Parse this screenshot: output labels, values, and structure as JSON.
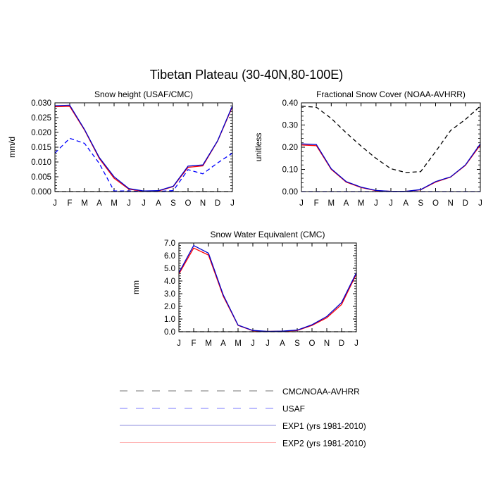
{
  "title": "Tibetan Plateau (30-40N,80-100E)",
  "months": [
    "J",
    "F",
    "M",
    "A",
    "M",
    "J",
    "J",
    "A",
    "S",
    "O",
    "N",
    "D",
    "J"
  ],
  "legend": [
    {
      "label": "CMC/NOAA-AVHRR",
      "color": "#000000",
      "dash": true
    },
    {
      "label": "USAF",
      "color": "#0000ff",
      "dash": true
    },
    {
      "label": "EXP1 (yrs 1981-2010)",
      "color": "#0000cc",
      "dash": false
    },
    {
      "label": "EXP2 (yrs 1981-2010)",
      "color": "#ff0000",
      "dash": false
    }
  ],
  "chart_data": [
    {
      "type": "line",
      "title": "Snow height (USAF/CMC)",
      "ylabel": "mm/d",
      "ylim": [
        0,
        0.03
      ],
      "yticks": [
        "0.000",
        "0.005",
        "0.010",
        "0.015",
        "0.020",
        "0.025",
        "0.030"
      ],
      "series": [
        {
          "name": "CMC/NOAA-AVHRR",
          "color": "#000000",
          "dash": true,
          "values": [
            0,
            0,
            0,
            0,
            0,
            0,
            0,
            0,
            0,
            0,
            0,
            0,
            0
          ]
        },
        {
          "name": "USAF",
          "color": "#0000ff",
          "dash": true,
          "values": [
            0.013,
            0.018,
            0.0163,
            0.0095,
            0.0002,
            0.0002,
            0.0001,
            0.0001,
            0.0003,
            0.0074,
            0.006,
            0.0097,
            0.013
          ]
        },
        {
          "name": "EXP2 (yrs 1981-2010)",
          "color": "#ff0000",
          "dash": false,
          "values": [
            0.0287,
            0.0288,
            0.0208,
            0.0112,
            0.0045,
            0.0008,
            0.0001,
            0.0002,
            0.0017,
            0.0082,
            0.0087,
            0.0171,
            0.0287
          ]
        },
        {
          "name": "EXP1 (yrs 1981-2010)",
          "color": "#0000cc",
          "dash": false,
          "values": [
            0.029,
            0.0292,
            0.021,
            0.0115,
            0.005,
            0.001,
            0.0002,
            0.0003,
            0.0018,
            0.0086,
            0.009,
            0.0172,
            0.029
          ]
        }
      ]
    },
    {
      "type": "line",
      "title": "Fractional Snow Cover (NOAA-AVHRR)",
      "ylabel": "unitless",
      "ylim": [
        0,
        0.4
      ],
      "yticks": [
        "0.00",
        "0.10",
        "0.20",
        "0.30",
        "0.40"
      ],
      "series": [
        {
          "name": "CMC/NOAA-AVHRR",
          "color": "#000000",
          "dash": true,
          "values": [
            0.385,
            0.38,
            0.33,
            0.265,
            0.205,
            0.15,
            0.103,
            0.086,
            0.09,
            0.18,
            0.275,
            0.325,
            0.385
          ]
        },
        {
          "name": "USAF",
          "color": "#0000ff",
          "dash": true,
          "values": [
            0,
            0,
            0,
            0,
            0,
            0,
            0,
            0,
            0,
            0,
            0,
            0,
            0
          ]
        },
        {
          "name": "EXP2 (yrs 1981-2010)",
          "color": "#ff0000",
          "dash": false,
          "values": [
            0.21,
            0.207,
            0.1,
            0.043,
            0.018,
            0.004,
            0.001,
            0.001,
            0.008,
            0.043,
            0.065,
            0.118,
            0.21
          ]
        },
        {
          "name": "EXP1 (yrs 1981-2010)",
          "color": "#0000cc",
          "dash": false,
          "values": [
            0.215,
            0.212,
            0.103,
            0.045,
            0.02,
            0.005,
            0.001,
            0.001,
            0.009,
            0.045,
            0.066,
            0.12,
            0.215
          ]
        }
      ]
    },
    {
      "type": "line",
      "title": "Snow Water Equivalent (CMC)",
      "ylabel": "mm",
      "ylim": [
        0,
        7
      ],
      "yticks": [
        "0.0",
        "1.0",
        "2.0",
        "3.0",
        "4.0",
        "5.0",
        "6.0",
        "7.0"
      ],
      "series": [
        {
          "name": "CMC/NOAA-AVHRR",
          "color": "#000000",
          "dash": true,
          "values": [
            0,
            0,
            0,
            0,
            0,
            0,
            0,
            0,
            0,
            0,
            0,
            0,
            0
          ]
        },
        {
          "name": "EXP2 (yrs 1981-2010)",
          "color": "#ff0000",
          "dash": false,
          "values": [
            4.55,
            6.6,
            6.05,
            2.8,
            0.5,
            0.08,
            0.02,
            0.04,
            0.1,
            0.5,
            1.1,
            2.15,
            4.55
          ]
        },
        {
          "name": "EXP1 (yrs 1981-2010)",
          "color": "#0000cc",
          "dash": false,
          "values": [
            4.65,
            6.8,
            6.2,
            2.9,
            0.52,
            0.1,
            0.03,
            0.05,
            0.13,
            0.55,
            1.2,
            2.3,
            4.65
          ]
        }
      ]
    }
  ]
}
